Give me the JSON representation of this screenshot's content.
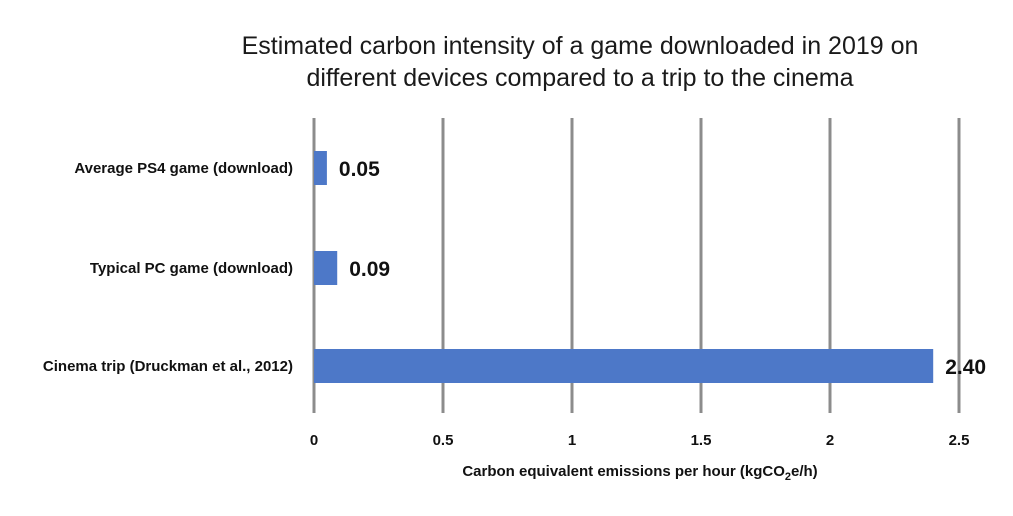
{
  "chart_data": {
    "type": "bar",
    "orientation": "horizontal",
    "title_lines": [
      "Estimated carbon intensity of a game downloaded in 2019 on",
      "different devices compared to a trip to the cinema"
    ],
    "categories": [
      "Average PS4 game (download)",
      "Typical PC game (download)",
      "Cinema trip (Druckman et al., 2012)"
    ],
    "values": [
      0.05,
      0.09,
      2.4
    ],
    "value_labels": [
      "0.05",
      "0.09",
      "2.40"
    ],
    "xlabel_parts": {
      "before": "Carbon equivalent emissions per hour (kgCO",
      "subscript": "2",
      "after": "e/h)"
    },
    "xlim": [
      0,
      2.5
    ],
    "xticks": [
      0,
      0.5,
      1,
      1.5,
      2,
      2.5
    ],
    "xtick_labels": [
      "0",
      "0.5",
      "1",
      "1.5",
      "2",
      "2.5"
    ],
    "grid": "vertical",
    "legend": "none",
    "colors": {
      "bar": "#4d78c8",
      "grid": "#8c8c8c",
      "text": "#111111"
    }
  }
}
